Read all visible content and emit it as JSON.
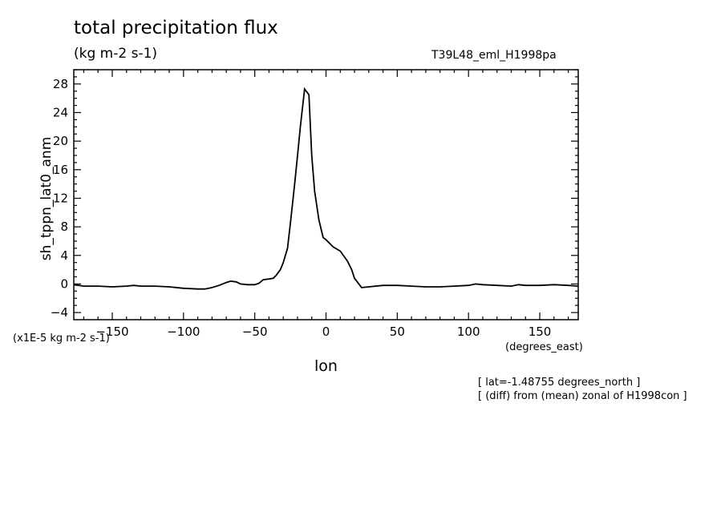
{
  "chart_data": {
    "type": "line",
    "title": "total precipitation flux",
    "units": "(kg m-2 s-1)",
    "experiment": "T39L48_eml_H1998pa",
    "xlabel": "lon",
    "xunits": "(degrees_east)",
    "ylabel": "sh_tppn_lat0_anm",
    "yscale_note": "(x1E-5 kg m-2 s-1)",
    "notes": [
      "[ lat=-1.48755 degrees_north ]",
      "[ (diff) from (mean) zonal of H1998con ]"
    ],
    "xlim": [
      -177,
      177
    ],
    "ylim": [
      -5,
      30
    ],
    "xticks": [
      -150,
      -100,
      -50,
      0,
      50,
      100,
      150
    ],
    "yticks": [
      -4,
      0,
      4,
      8,
      12,
      16,
      20,
      24,
      28
    ],
    "grid": false,
    "series": [
      {
        "x": [
          -177,
          -170,
          -160,
          -150,
          -140,
          -135,
          -130,
          -120,
          -110,
          -100,
          -90,
          -85,
          -80,
          -75,
          -70,
          -67,
          -63,
          -60,
          -55,
          -50,
          -47,
          -44,
          -40,
          -37,
          -35,
          -32,
          -30,
          -27,
          -25,
          -22,
          -20,
          -18,
          -15,
          -12,
          -10,
          -8,
          -5,
          -2,
          0,
          5,
          10,
          15,
          18,
          20,
          25,
          30,
          40,
          50,
          60,
          70,
          80,
          90,
          100,
          105,
          110,
          120,
          130,
          135,
          140,
          150,
          160,
          170,
          177
        ],
        "y": [
          -0.1,
          -0.3,
          -0.3,
          -0.4,
          -0.3,
          -0.2,
          -0.3,
          -0.3,
          -0.4,
          -0.6,
          -0.7,
          -0.7,
          -0.5,
          -0.2,
          0.2,
          0.4,
          0.3,
          0.0,
          -0.1,
          -0.1,
          0.1,
          0.6,
          0.7,
          0.8,
          1.2,
          2.0,
          3.0,
          5.0,
          8.5,
          14.0,
          18.0,
          22.0,
          27.3,
          26.5,
          18.0,
          13.0,
          9.0,
          6.5,
          6.2,
          5.2,
          4.6,
          3.2,
          2.0,
          0.8,
          -0.5,
          -0.4,
          -0.2,
          -0.2,
          -0.3,
          -0.4,
          -0.4,
          -0.3,
          -0.2,
          0.0,
          -0.1,
          -0.2,
          -0.3,
          -0.1,
          -0.2,
          -0.2,
          -0.1,
          -0.2,
          -0.3
        ]
      }
    ]
  }
}
